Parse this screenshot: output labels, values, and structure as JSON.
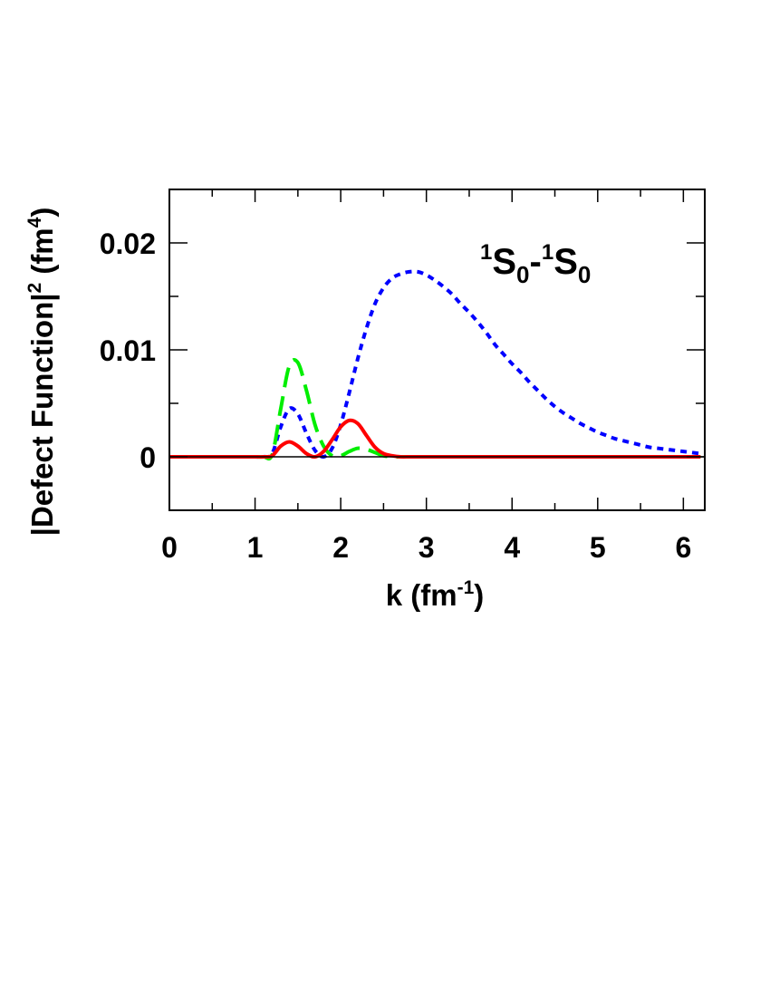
{
  "chart_data": {
    "type": "line",
    "title": "",
    "annotation": {
      "parts": [
        "1",
        "S",
        "0",
        "-",
        "1",
        "S",
        "0"
      ]
    },
    "xlabel": {
      "main": "k (fm",
      "sup": "-1",
      "close": ")"
    },
    "ylabel": {
      "main": "|Defect Function|",
      "sup1": "2",
      "mid": " (fm",
      "sup2": "4",
      "close": ")"
    },
    "xlim": [
      0,
      6.25
    ],
    "ylim": [
      -0.005,
      0.025
    ],
    "xticks": [
      0,
      1,
      2,
      3,
      4,
      5,
      6
    ],
    "xtick_labels": [
      "0",
      "1",
      "2",
      "3",
      "4",
      "5",
      "6"
    ],
    "yticks": [
      0,
      0.01,
      0.02
    ],
    "ytick_labels": [
      "0",
      "0.01",
      "0.02"
    ],
    "grid": false,
    "x": [
      0,
      0.1,
      0.2,
      0.3,
      0.4,
      0.5,
      0.6,
      0.7,
      0.8,
      0.9,
      1.0,
      1.1,
      1.2,
      1.3,
      1.4,
      1.5,
      1.6,
      1.7,
      1.8,
      1.9,
      2.0,
      2.1,
      2.2,
      2.3,
      2.4,
      2.5,
      2.6,
      2.7,
      2.8,
      2.9,
      3.0,
      3.1,
      3.2,
      3.3,
      3.4,
      3.5,
      3.6,
      3.7,
      3.8,
      3.9,
      4.0,
      4.1,
      4.2,
      4.3,
      4.4,
      4.5,
      4.6,
      4.7,
      4.8,
      4.9,
      5.0,
      5.1,
      5.2,
      5.3,
      5.4,
      5.5,
      5.6,
      5.7,
      5.8,
      5.9,
      6.0,
      6.1,
      6.2
    ],
    "series": [
      {
        "color": "#0000ff",
        "style": "dotted",
        "values": [
          0,
          0,
          0,
          0,
          0,
          0,
          0,
          0,
          0,
          0,
          0,
          0,
          0.0003,
          0.0028,
          0.0045,
          0.004,
          0.0022,
          0.0006,
          0.0,
          0.0008,
          0.003,
          0.006,
          0.0092,
          0.012,
          0.0143,
          0.0158,
          0.0167,
          0.0171,
          0.0173,
          0.0173,
          0.017,
          0.0165,
          0.0159,
          0.0152,
          0.0143,
          0.0135,
          0.0126,
          0.0116,
          0.0105,
          0.0096,
          0.0087,
          0.0079,
          0.007,
          0.0062,
          0.0054,
          0.0047,
          0.0041,
          0.0036,
          0.0031,
          0.0027,
          0.0023,
          0.002,
          0.0017,
          0.0015,
          0.0013,
          0.0011,
          0.0009,
          0.0008,
          0.0007,
          0.0006,
          0.0005,
          0.0004,
          0.0003
        ]
      },
      {
        "color": "#00ee00",
        "style": "dashed",
        "values": [
          0,
          0,
          0,
          0,
          0,
          0,
          0,
          0,
          0,
          0,
          0,
          0,
          0.0002,
          0.0045,
          0.0085,
          0.0088,
          0.0062,
          0.003,
          0.001,
          0.0001,
          0.0001,
          0.0005,
          0.0008,
          0.0007,
          0.0004,
          0.0001,
          0,
          0,
          0,
          0,
          0,
          0,
          0,
          0,
          0,
          0,
          0,
          0,
          0,
          0,
          0,
          0,
          0,
          0,
          0,
          0,
          0,
          0,
          0,
          0,
          0,
          0,
          0,
          0,
          0,
          0,
          0,
          0,
          0,
          0,
          0,
          0,
          0
        ]
      },
      {
        "color": "#ff0000",
        "style": "solid",
        "values": [
          0,
          0,
          0,
          0,
          0,
          0,
          0,
          0,
          0,
          0,
          0,
          0,
          0.0001,
          0.001,
          0.0014,
          0.001,
          0.0003,
          0.0,
          0.0005,
          0.0016,
          0.0028,
          0.0034,
          0.0031,
          0.002,
          0.0009,
          0.0003,
          0.0001,
          0,
          0,
          0,
          0,
          0,
          0,
          0,
          0,
          0,
          0,
          0,
          0,
          0,
          0,
          0,
          0,
          0,
          0,
          0,
          0,
          0,
          0,
          0,
          0,
          0,
          0,
          0,
          0,
          0,
          0,
          0,
          0,
          0,
          0,
          0,
          0
        ]
      }
    ]
  }
}
